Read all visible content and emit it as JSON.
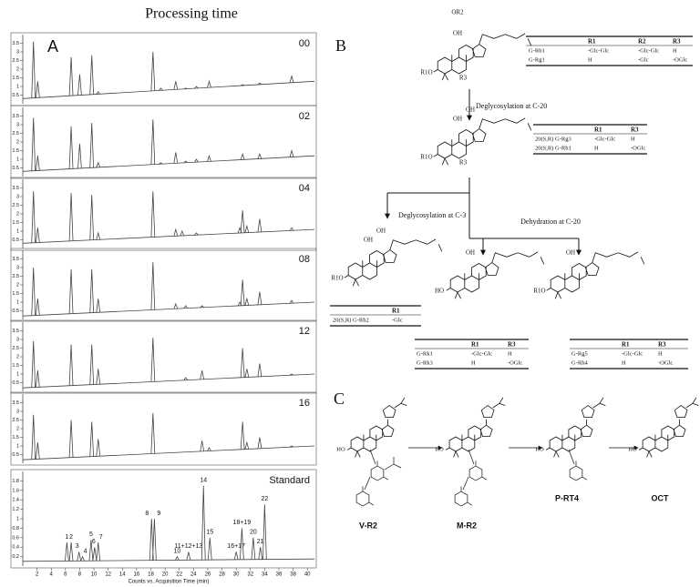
{
  "figure": {
    "title": "Processing time",
    "panel_a": {
      "label": "A",
      "xlabel": "Counts vs. Acquisition Time (min)",
      "xlim": [
        0,
        41
      ],
      "xticks": [
        2,
        4,
        6,
        8,
        10,
        12,
        14,
        16,
        18,
        20,
        22,
        24,
        26,
        28,
        30,
        32,
        34,
        36,
        38,
        40
      ],
      "sample_ylim": [
        0,
        4
      ],
      "sample_yticks": [
        0.5,
        1,
        1.5,
        2,
        2.5,
        3,
        3.5
      ],
      "traces": [
        {
          "name": "00",
          "baseline": [
            0.3,
            1.3
          ],
          "peaks": [
            [
              1.5,
              3.6
            ],
            [
              2.1,
              1.3
            ],
            [
              6.8,
              2.7
            ],
            [
              8.0,
              1.7
            ],
            [
              9.7,
              2.8
            ],
            [
              10.6,
              0.7
            ],
            [
              18.3,
              3.0
            ],
            [
              19.4,
              0.9
            ],
            [
              21.5,
              1.3
            ],
            [
              22.9,
              0.9
            ],
            [
              24.4,
              1.0
            ],
            [
              26.2,
              1.3
            ],
            [
              30.9,
              1.1
            ],
            [
              33.3,
              1.2
            ],
            [
              37.8,
              1.6
            ]
          ]
        },
        {
          "name": "02",
          "baseline": [
            0.3,
            1.2
          ],
          "peaks": [
            [
              1.5,
              3.4
            ],
            [
              2.1,
              1.2
            ],
            [
              6.8,
              2.9
            ],
            [
              8.0,
              1.9
            ],
            [
              9.7,
              3.1
            ],
            [
              10.6,
              0.8
            ],
            [
              18.3,
              3.3
            ],
            [
              19.4,
              0.8
            ],
            [
              21.5,
              1.4
            ],
            [
              22.9,
              0.9
            ],
            [
              24.4,
              1.0
            ],
            [
              26.2,
              1.2
            ],
            [
              30.9,
              1.3
            ],
            [
              33.3,
              1.3
            ],
            [
              37.8,
              1.5
            ]
          ]
        },
        {
          "name": "04",
          "baseline": [
            0.3,
            1.1
          ],
          "peaks": [
            [
              1.5,
              3.3
            ],
            [
              2.1,
              1.2
            ],
            [
              6.8,
              3.2
            ],
            [
              9.7,
              3.1
            ],
            [
              10.6,
              0.9
            ],
            [
              18.3,
              3.3
            ],
            [
              21.5,
              1.1
            ],
            [
              22.4,
              1.0
            ],
            [
              24.4,
              0.9
            ],
            [
              30.5,
              1.2
            ],
            [
              30.9,
              2.2
            ],
            [
              31.5,
              1.3
            ],
            [
              33.3,
              1.7
            ],
            [
              37.8,
              1.2
            ]
          ]
        },
        {
          "name": "08",
          "baseline": [
            0.2,
            1.0
          ],
          "peaks": [
            [
              1.5,
              3.0
            ],
            [
              2.1,
              1.2
            ],
            [
              6.8,
              2.9
            ],
            [
              9.7,
              2.9
            ],
            [
              10.6,
              1.2
            ],
            [
              18.3,
              3.3
            ],
            [
              21.5,
              0.9
            ],
            [
              22.9,
              0.8
            ],
            [
              25.2,
              0.8
            ],
            [
              30.5,
              1.0
            ],
            [
              30.9,
              2.3
            ],
            [
              31.5,
              1.2
            ],
            [
              33.3,
              1.6
            ],
            [
              37.8,
              1.1
            ]
          ]
        },
        {
          "name": "12",
          "baseline": [
            0.2,
            1.0
          ],
          "peaks": [
            [
              1.5,
              2.9
            ],
            [
              2.1,
              1.2
            ],
            [
              6.8,
              2.7
            ],
            [
              9.7,
              2.7
            ],
            [
              10.6,
              1.3
            ],
            [
              18.3,
              3.1
            ],
            [
              22.9,
              0.8
            ],
            [
              25.2,
              1.2
            ],
            [
              30.9,
              2.5
            ],
            [
              31.5,
              1.3
            ],
            [
              33.3,
              1.6
            ],
            [
              37.8,
              1.0
            ]
          ]
        },
        {
          "name": "16",
          "baseline": [
            0.2,
            1.0
          ],
          "peaks": [
            [
              1.5,
              2.8
            ],
            [
              2.1,
              1.2
            ],
            [
              6.8,
              2.5
            ],
            [
              9.7,
              2.4
            ],
            [
              10.6,
              1.4
            ],
            [
              18.3,
              2.9
            ],
            [
              25.2,
              1.3
            ],
            [
              26.2,
              0.9
            ],
            [
              30.9,
              2.4
            ],
            [
              31.5,
              1.2
            ],
            [
              33.3,
              1.5
            ],
            [
              37.8,
              1.0
            ]
          ]
        }
      ],
      "standard": {
        "name": "Standard",
        "ylim": [
          0,
          2
        ],
        "yticks": [
          0.2,
          0.4,
          0.6,
          0.8,
          1,
          1.2,
          1.4,
          1.6,
          1.8
        ],
        "baseline": [
          0.1,
          0.15
        ],
        "peaks": [
          {
            "label": "1",
            "time": 6.2,
            "height": 0.5
          },
          {
            "label": "2",
            "time": 6.8,
            "height": 0.5
          },
          {
            "label": "3",
            "time": 7.9,
            "height": 0.3
          },
          {
            "label": "4",
            "time": 8.4,
            "height": 0.2
          },
          {
            "label": "5",
            "time": 9.6,
            "height": 0.55
          },
          {
            "label": "6",
            "time": 10.1,
            "height": 0.4
          },
          {
            "label": "7",
            "time": 10.6,
            "height": 0.5
          },
          {
            "label": "8",
            "time": 18.1,
            "height": 1.0
          },
          {
            "label": "9",
            "time": 18.5,
            "height": 1.0
          },
          {
            "label": "10",
            "time": 21.7,
            "height": 0.2
          },
          {
            "label": "11+12+13",
            "time": 23.3,
            "height": 0.3
          },
          {
            "label": "14",
            "time": 25.4,
            "height": 1.7
          },
          {
            "label": "15",
            "time": 26.3,
            "height": 0.6
          },
          {
            "label": "16+17",
            "time": 30.0,
            "height": 0.3
          },
          {
            "label": "18+19",
            "time": 30.8,
            "height": 0.8
          },
          {
            "label": "20",
            "time": 32.4,
            "height": 0.6
          },
          {
            "label": "21",
            "time": 33.4,
            "height": 0.4
          },
          {
            "label": "22",
            "time": 34.0,
            "height": 1.3
          }
        ]
      }
    },
    "panel_b": {
      "label": "B",
      "reactions": [
        "Deglycosylation at C-20",
        "Deglycosylation at C-3",
        "Dehydration at C-20"
      ],
      "structures": [
        {
          "labels": [
            "OR2",
            "OH",
            "R1O",
            "R3"
          ]
        },
        {
          "labels": [
            "OH",
            "OH",
            "R1O",
            "R3"
          ]
        },
        {
          "labels": [
            "OH",
            "OH",
            "R1O"
          ]
        },
        {
          "labels": [
            "OH",
            "HO"
          ]
        },
        {
          "labels": [
            "OH",
            "R1O"
          ]
        }
      ],
      "tables": [
        {
          "header": [
            "R1",
            "R2",
            "R3"
          ],
          "rows": [
            [
              "G-Rb1",
              "-Glc-Glc",
              "-Glc-Glc",
              "H"
            ],
            [
              "G-Rg1",
              "H",
              "-Glc",
              "-OGlc"
            ]
          ]
        },
        {
          "header": [
            "R1",
            "R3"
          ],
          "rows": [
            [
              "20(S,R) G-Rg3",
              "-Glc-Glc",
              "H"
            ],
            [
              "20(S,R) G-Rh1",
              "H",
              "-OGlc"
            ]
          ]
        },
        {
          "header": [
            "R1"
          ],
          "rows": [
            [
              "20(S,R) G-Rh2",
              "-Glc"
            ]
          ]
        },
        {
          "header": [
            "R1",
            "R3"
          ],
          "rows": [
            [
              "G-Rk1",
              "-Glc-Glc",
              "H"
            ],
            [
              "G-Rk3",
              "H",
              "-OGlc"
            ]
          ]
        },
        {
          "header": [
            "R1",
            "R3"
          ],
          "rows": [
            [
              "G-Rg5",
              "-Glc-Glc",
              "H"
            ],
            [
              "G-Rh4",
              "H",
              "-OGlc"
            ]
          ]
        }
      ]
    },
    "panel_c": {
      "label": "C",
      "compounds": [
        "V-R2",
        "M-R2",
        "P-RT4",
        "OCT"
      ],
      "labels": [
        "HO",
        "HO",
        "HO",
        "HO"
      ]
    }
  }
}
